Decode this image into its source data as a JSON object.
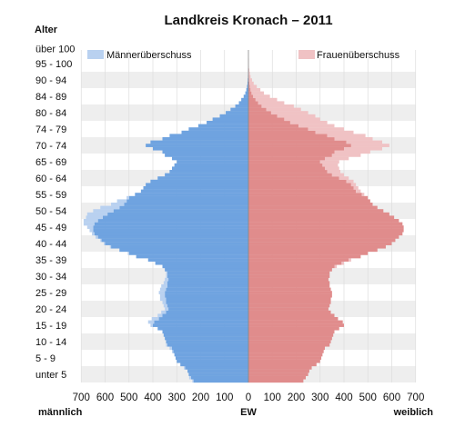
{
  "chart_data": {
    "type": "bar",
    "subtype": "population-pyramid",
    "title": "Landkreis Kronach – 2011",
    "y_axis_title": "Alter",
    "x_axis_title": "EW",
    "left_axis_label": "männlich",
    "right_axis_label": "weiblich",
    "x_ticks": [
      700,
      600,
      500,
      400,
      300,
      200,
      100,
      0,
      100,
      200,
      300,
      400,
      500,
      600,
      700
    ],
    "x_range": [
      -700,
      700
    ],
    "age_labels": [
      "unter 5",
      "5 - 9",
      "10 - 14",
      "15 - 19",
      "20 - 24",
      "25 - 29",
      "30 - 34",
      "35 - 39",
      "40 - 44",
      "45 - 49",
      "50 - 54",
      "55 - 59",
      "60 - 64",
      "65 - 69",
      "70 - 74",
      "74 - 79",
      "80 - 84",
      "84 - 89",
      "90 - 94",
      "95 - 100",
      "über 100"
    ],
    "legend": [
      "Männerüberschuss",
      "Frauenüberschuss"
    ],
    "legend_placement": [
      "top-left",
      "top-right"
    ],
    "colors": {
      "male": "#6fa3e0",
      "male_excess": "#b9d1f0",
      "female": "#e08c8c",
      "female_excess": "#f0c2c4",
      "band": "#eeeeee"
    },
    "ages": [
      0,
      1,
      2,
      3,
      4,
      5,
      6,
      7,
      8,
      9,
      10,
      11,
      12,
      13,
      14,
      15,
      16,
      17,
      18,
      19,
      20,
      21,
      22,
      23,
      24,
      25,
      26,
      27,
      28,
      29,
      30,
      31,
      32,
      33,
      34,
      35,
      36,
      37,
      38,
      39,
      40,
      41,
      42,
      43,
      44,
      45,
      46,
      47,
      48,
      49,
      50,
      51,
      52,
      53,
      54,
      55,
      56,
      57,
      58,
      59,
      60,
      61,
      62,
      63,
      64,
      65,
      66,
      67,
      68,
      69,
      70,
      71,
      72,
      73,
      74,
      75,
      76,
      77,
      78,
      79,
      80,
      81,
      82,
      83,
      84,
      85,
      86,
      87,
      88,
      89,
      90,
      91,
      92,
      93,
      94,
      95,
      96,
      97,
      98,
      99,
      100
    ],
    "male": [
      235,
      248,
      250,
      255,
      270,
      285,
      300,
      305,
      310,
      320,
      330,
      345,
      345,
      350,
      355,
      360,
      380,
      410,
      420,
      405,
      380,
      365,
      350,
      355,
      360,
      370,
      370,
      375,
      370,
      365,
      355,
      350,
      345,
      345,
      350,
      360,
      390,
      420,
      470,
      505,
      540,
      580,
      605,
      620,
      640,
      655,
      665,
      675,
      690,
      690,
      680,
      675,
      650,
      620,
      575,
      550,
      510,
      475,
      450,
      440,
      430,
      410,
      380,
      350,
      330,
      320,
      310,
      300,
      320,
      350,
      360,
      400,
      430,
      410,
      360,
      330,
      280,
      250,
      210,
      175,
      150,
      120,
      95,
      75,
      55,
      40,
      30,
      20,
      13,
      9,
      6,
      4,
      3,
      2,
      1,
      1,
      0,
      0,
      0,
      0,
      0
    ],
    "female": [
      230,
      240,
      250,
      255,
      265,
      285,
      300,
      305,
      310,
      315,
      320,
      340,
      345,
      350,
      355,
      360,
      380,
      400,
      395,
      375,
      360,
      345,
      335,
      340,
      345,
      345,
      350,
      350,
      345,
      340,
      340,
      335,
      340,
      340,
      350,
      370,
      400,
      430,
      470,
      500,
      540,
      575,
      600,
      615,
      630,
      645,
      650,
      650,
      645,
      630,
      610,
      590,
      565,
      540,
      520,
      510,
      500,
      485,
      470,
      460,
      450,
      440,
      420,
      400,
      385,
      380,
      375,
      380,
      420,
      470,
      510,
      560,
      590,
      560,
      520,
      490,
      440,
      400,
      360,
      330,
      300,
      280,
      250,
      220,
      190,
      150,
      120,
      90,
      65,
      50,
      35,
      22,
      15,
      9,
      6,
      4,
      2,
      1,
      1,
      0,
      0
    ]
  }
}
